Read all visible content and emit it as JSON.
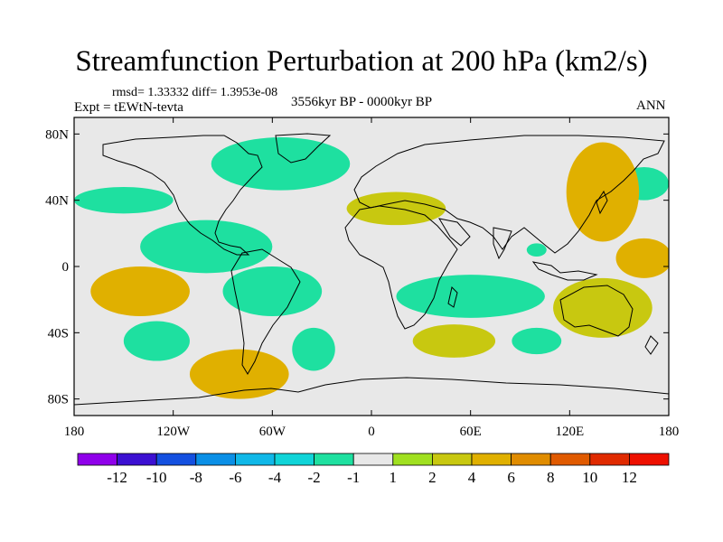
{
  "title": "Streamfunction Perturbation at 200 hPa (km2/s)",
  "subtitle_stats": "rmsd= 1.33332 diff= 1.3953e-08",
  "experiment": "Expt = tEWtN-tevta",
  "period": "3556kyr BP - 0000kyr BP",
  "season": "ANN",
  "axes": {
    "lon_range": [
      -180,
      180
    ],
    "lat_range": [
      -90,
      90
    ],
    "lon_ticks": [
      {
        "value": -180,
        "label": "180"
      },
      {
        "value": -120,
        "label": "120W"
      },
      {
        "value": -60,
        "label": "60W"
      },
      {
        "value": 0,
        "label": "0"
      },
      {
        "value": 60,
        "label": "60E"
      },
      {
        "value": 120,
        "label": "120E"
      },
      {
        "value": 180,
        "label": "180"
      }
    ],
    "lat_ticks": [
      {
        "value": 80,
        "label": "80N"
      },
      {
        "value": 40,
        "label": "40N"
      },
      {
        "value": 0,
        "label": "0"
      },
      {
        "value": -40,
        "label": "40S"
      },
      {
        "value": -80,
        "label": "80S"
      }
    ]
  },
  "colorbar": {
    "labels": [
      "-12",
      "-10",
      "-8",
      "-6",
      "-4",
      "-2",
      "-1",
      "1",
      "2",
      "4",
      "6",
      "8",
      "10",
      "12"
    ],
    "colors": [
      "#8f00ea",
      "#3c10d2",
      "#1450e0",
      "#0a8fe6",
      "#10b8e8",
      "#10d4d8",
      "#1ee0a0",
      "#e8e8e8",
      "#a0e020",
      "#c8c810",
      "#e0b000",
      "#e08c00",
      "#e05a00",
      "#e02a00",
      "#ee1000"
    ]
  },
  "chart_data": {
    "type": "contour-map",
    "variable": "Streamfunction Perturbation",
    "level": "200 hPa",
    "units": "km2/s",
    "levels": [
      -12,
      -10,
      -8,
      -6,
      -4,
      -2,
      -1,
      1,
      2,
      4,
      6,
      8,
      10,
      12
    ],
    "regions": [
      {
        "name": "north-atlantic-negative",
        "lon": -55,
        "lat": 62,
        "rx": 42,
        "ry": 16,
        "value": -2
      },
      {
        "name": "eastern-north-pacific-negative",
        "lon": -150,
        "lat": 40,
        "rx": 30,
        "ry": 8,
        "value": -2
      },
      {
        "name": "central-america-negative",
        "lon": -100,
        "lat": 12,
        "rx": 40,
        "ry": 16,
        "value": -2
      },
      {
        "name": "tropical-atlantic-negative",
        "lon": -60,
        "lat": -15,
        "rx": 30,
        "ry": 15,
        "value": -2
      },
      {
        "name": "south-atlantic-negative",
        "lon": -35,
        "lat": -50,
        "rx": 13,
        "ry": 13,
        "value": -2
      },
      {
        "name": "indian-ocean-negative",
        "lon": 60,
        "lat": -18,
        "rx": 45,
        "ry": 13,
        "value": -2
      },
      {
        "name": "australia-south-negative",
        "lon": 100,
        "lat": -45,
        "rx": 15,
        "ry": 8,
        "value": -2
      },
      {
        "name": "north-pacific-negative",
        "lon": 165,
        "lat": 50,
        "rx": 15,
        "ry": 10,
        "value": -2
      },
      {
        "name": "maritime-negative",
        "lon": 100,
        "lat": 10,
        "rx": 6,
        "ry": 4,
        "value": -2
      },
      {
        "name": "east-pacific-negative",
        "lon": -130,
        "lat": -45,
        "rx": 20,
        "ry": 12,
        "value": -2
      },
      {
        "name": "asia-positive",
        "lon": 140,
        "lat": 45,
        "rx": 22,
        "ry": 30,
        "value": 4
      },
      {
        "name": "west-pacific-positive",
        "lon": 165,
        "lat": 5,
        "rx": 17,
        "ry": 12,
        "value": 4
      },
      {
        "name": "mediterranean-positive",
        "lon": 15,
        "lat": 35,
        "rx": 30,
        "ry": 10,
        "value": 2
      },
      {
        "name": "south-pacific-positive",
        "lon": -140,
        "lat": -15,
        "rx": 30,
        "ry": 15,
        "value": 4
      },
      {
        "name": "south-pacific-high-lat-positive",
        "lon": -80,
        "lat": -65,
        "rx": 30,
        "ry": 15,
        "value": 4
      },
      {
        "name": "southern-ocean-positive",
        "lon": 50,
        "lat": -45,
        "rx": 25,
        "ry": 10,
        "value": 2
      },
      {
        "name": "australia-positive",
        "lon": 140,
        "lat": -25,
        "rx": 30,
        "ry": 18,
        "value": 2
      }
    ]
  }
}
